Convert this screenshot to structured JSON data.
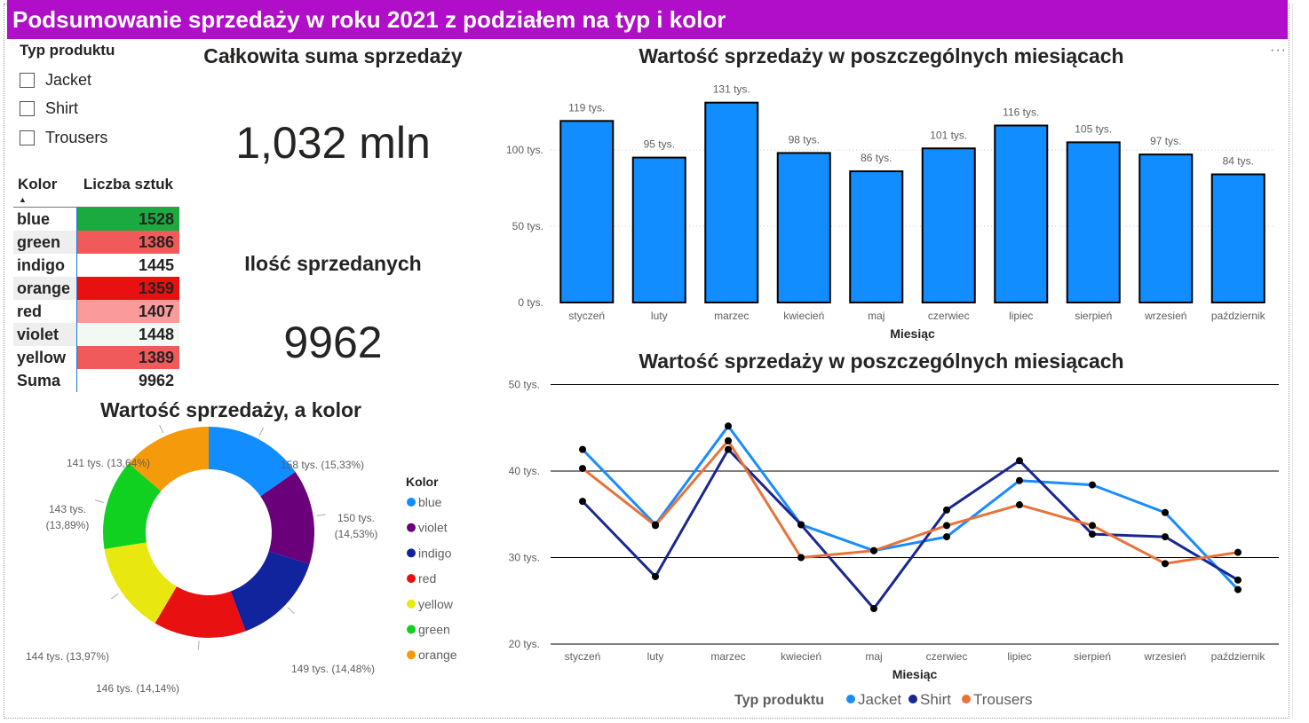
{
  "header": {
    "title": "Podsumowanie sprzedaży w roku 2021 z podziałem na typ i kolor"
  },
  "more_options": "···",
  "slicer": {
    "title": "Typ produktu",
    "items": [
      {
        "label": "Jacket",
        "checked": false
      },
      {
        "label": "Shirt",
        "checked": false
      },
      {
        "label": "Trousers",
        "checked": false
      }
    ]
  },
  "cards": {
    "total_sales": {
      "title": "Całkowita suma sprzedaży",
      "value": "1,032 mln"
    },
    "quantity": {
      "title": "Ilość sprzedanych",
      "value": "9962"
    }
  },
  "color_table": {
    "headers": [
      "Kolor",
      "Liczba sztuk"
    ],
    "sort_indicator": "▲",
    "rows": [
      {
        "color": "blue",
        "count": "1528",
        "bg": "#1aaa40"
      },
      {
        "color": "green",
        "count": "1386",
        "bg": "#f05a5a"
      },
      {
        "color": "indigo",
        "count": "1445",
        "bg": "#ffffff"
      },
      {
        "color": "orange",
        "count": "1359",
        "bg": "#e81010"
      },
      {
        "color": "red",
        "count": "1407",
        "bg": "#fa9a9a"
      },
      {
        "color": "violet",
        "count": "1448",
        "bg": "#f2f8f2"
      },
      {
        "color": "yellow",
        "count": "1389",
        "bg": "#f05a5a"
      }
    ],
    "total": {
      "label": "Suma",
      "count": "9962"
    }
  },
  "chart_data": [
    {
      "type": "bar",
      "title": "Wartość sprzedaży w poszczególnych miesiącach",
      "xlabel": "Miesiąc",
      "ylabel": "",
      "categories": [
        "styczeń",
        "luty",
        "marzec",
        "kwiecień",
        "maj",
        "czerwiec",
        "lipiec",
        "sierpień",
        "wrzesień",
        "październik"
      ],
      "values": [
        119,
        95,
        131,
        98,
        86,
        101,
        116,
        105,
        97,
        84
      ],
      "data_labels": [
        "119 tys.",
        "95 tys.",
        "131 tys.",
        "98 tys.",
        "86 tys.",
        "101 tys.",
        "116 tys.",
        "105 tys.",
        "97 tys.",
        "84 tys."
      ],
      "y_ticks": [
        0,
        50,
        100
      ],
      "y_tick_labels": [
        "0 tys.",
        "50 tys.",
        "100 tys."
      ],
      "ylim": [
        0,
        140
      ],
      "grid": true,
      "bar_color": "#118dff"
    },
    {
      "type": "line",
      "title": "Wartość sprzedaży w poszczególnych miesiącach",
      "xlabel": "Miesiąc",
      "categories": [
        "styczeń",
        "luty",
        "marzec",
        "kwiecień",
        "maj",
        "czerwiec",
        "lipiec",
        "sierpień",
        "wrzesień",
        "październik"
      ],
      "y_ticks": [
        20,
        30,
        40,
        50
      ],
      "y_tick_labels": [
        "20 tys.",
        "30 tys.",
        "40 tys.",
        "50 tys."
      ],
      "ylim": [
        20,
        50
      ],
      "grid": true,
      "legend_title": "Typ produktu",
      "legend_position": "bottom",
      "series": [
        {
          "name": "Jacket",
          "color": "#1a8cff",
          "values": [
            42.5,
            33.8,
            45.2,
            33.8,
            30.8,
            32.4,
            38.9,
            38.4,
            35.2,
            26.3
          ]
        },
        {
          "name": "Shirt",
          "color": "#1a2791",
          "values": [
            36.5,
            27.8,
            42.5,
            33.8,
            24.1,
            35.5,
            41.2,
            32.7,
            32.4,
            27.4
          ]
        },
        {
          "name": "Trousers",
          "color": "#e8733a",
          "values": [
            40.3,
            33.7,
            43.5,
            30.0,
            30.8,
            33.7,
            36.1,
            33.7,
            29.3,
            30.6
          ]
        }
      ]
    },
    {
      "type": "pie",
      "title": "Wartość sprzedaży, a kolor",
      "legend_title": "Kolor",
      "legend_position": "right",
      "slices": [
        {
          "label": "blue",
          "value": 158,
          "text": "158 tys. (15,33%)",
          "color": "#118dff"
        },
        {
          "label": "violet",
          "value": 150,
          "text": "150 tys. (14,53%)",
          "color": "#6b007b"
        },
        {
          "label": "indigo",
          "value": 149,
          "text": "149 tys. (14,48%)",
          "color": "#12239e"
        },
        {
          "label": "red",
          "value": 146,
          "text": "146 tys. (14,14%)",
          "color": "#e81010"
        },
        {
          "label": "yellow",
          "value": 144,
          "text": "144 tys. (13,97%)",
          "color": "#e8e810"
        },
        {
          "label": "green",
          "value": 143,
          "text": "143 tys. (13,89%)",
          "color": "#10d020"
        },
        {
          "label": "orange",
          "value": 141,
          "text": "141 tys. (13,64%)",
          "color": "#f59a0a"
        }
      ]
    }
  ]
}
